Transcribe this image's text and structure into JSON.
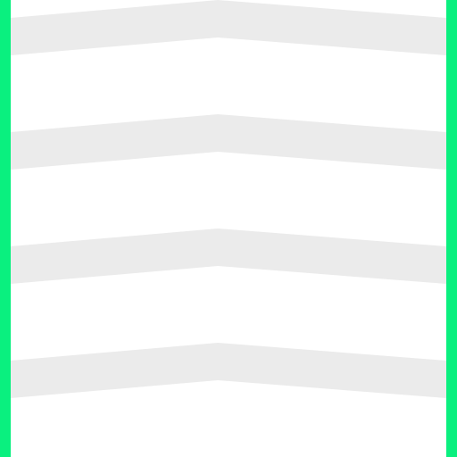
{
  "colors": {
    "background": "#ffffff",
    "edge_accent": "#0af07f",
    "chevron_band": "#ebebeb"
  },
  "pattern": {
    "motif": "chevron-bands",
    "band_count": 4
  }
}
